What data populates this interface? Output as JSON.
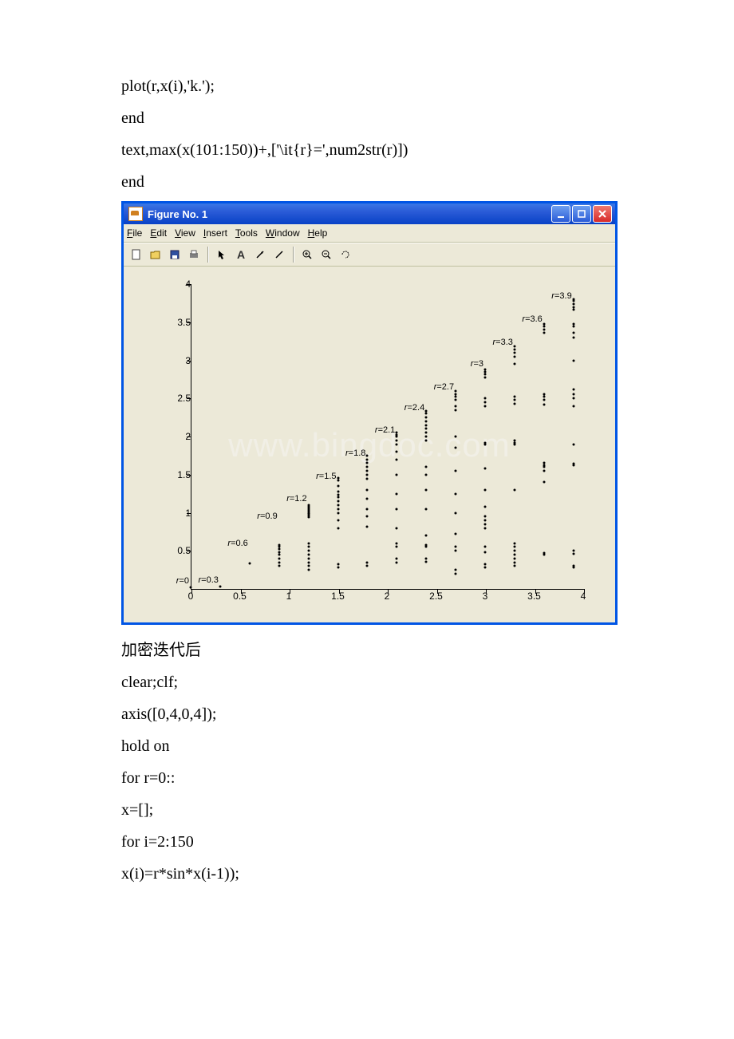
{
  "code_top": [
    " plot(r,x(i),'k.');",
    " end",
    " text,max(x(101:150))+,['\\it{r}=',num2str(r)])",
    "end"
  ],
  "code_bottom": [
    "加密迭代后",
    "clear;clf;",
    "axis([0,4,0,4]);",
    "hold on",
    "for r=0::",
    " x=[];",
    " for i=2:150",
    " x(i)=r*sin*x(i-1));"
  ],
  "window": {
    "title": "Figure No. 1",
    "menus": [
      "File",
      "Edit",
      "View",
      "Insert",
      "Tools",
      "Window",
      "Help"
    ],
    "toolbar_icons": [
      "new",
      "open",
      "save",
      "print",
      "|",
      "pointer",
      "text",
      "arrow",
      "line",
      "|",
      "zoom-in",
      "zoom-out",
      "rotate"
    ]
  },
  "chart": {
    "watermark": "www.bingdoc.com",
    "xlim": [
      0,
      4
    ],
    "ylim": [
      0,
      4
    ],
    "xticks": [
      0,
      0.5,
      1,
      1.5,
      2,
      2.5,
      3,
      3.5,
      4
    ],
    "yticks": [
      0.5,
      1,
      1.5,
      2,
      2.5,
      3,
      3.5,
      4
    ],
    "xtick_labels": [
      "0",
      "0.5",
      "1",
      "1.5",
      "2",
      "2.5",
      "3",
      "3.5",
      "4"
    ],
    "ytick_labels": [
      "0.5",
      "1",
      "1.5",
      "2",
      "2.5",
      "3",
      "3.5",
      "4"
    ],
    "plot_color": "#000000",
    "background_color": "#ece9d8",
    "r_series": [
      {
        "r": 0.0,
        "label": "r=0",
        "label_y": 0.1,
        "pts": [
          0.02
        ]
      },
      {
        "r": 0.3,
        "label": "r=0.3",
        "label_y": 0.12,
        "pts": [
          0.03
        ]
      },
      {
        "r": 0.6,
        "label": "r=0.6",
        "label_y": 0.6,
        "pts": [
          0.33
        ]
      },
      {
        "r": 0.9,
        "label": "r=0.9",
        "label_y": 0.95,
        "pts": [
          0.45,
          0.48,
          0.52,
          0.55,
          0.58,
          0.3,
          0.35,
          0.4
        ]
      },
      {
        "r": 1.2,
        "label": "r=1.2",
        "label_y": 1.18,
        "pts": [
          0.25,
          0.3,
          0.35,
          0.4,
          0.45,
          0.5,
          0.55,
          0.6,
          0.94,
          0.96,
          0.98,
          1.0,
          1.02,
          1.04,
          1.06,
          1.08,
          1.1
        ]
      },
      {
        "r": 1.5,
        "label": "r=1.5",
        "label_y": 1.48,
        "pts": [
          0.28,
          0.32,
          0.8,
          0.9,
          1.0,
          1.05,
          1.1,
          1.15,
          1.2,
          1.24,
          1.28,
          1.35,
          1.42,
          1.46
        ]
      },
      {
        "r": 1.8,
        "label": "r=1.8",
        "label_y": 1.78,
        "pts": [
          0.3,
          0.35,
          0.82,
          0.95,
          1.05,
          1.18,
          1.3,
          1.45,
          1.5,
          1.55,
          1.6,
          1.65,
          1.7,
          1.75
        ]
      },
      {
        "r": 2.1,
        "label": "r=2.1",
        "label_y": 2.08,
        "pts": [
          0.35,
          0.4,
          0.55,
          0.6,
          0.8,
          1.05,
          1.25,
          1.5,
          1.7,
          1.8,
          1.9,
          1.95,
          2.0,
          2.02,
          2.05
        ]
      },
      {
        "r": 2.4,
        "label": "r=2.4",
        "label_y": 2.38,
        "pts": [
          0.36,
          0.4,
          0.55,
          0.58,
          0.7,
          1.05,
          1.3,
          1.5,
          1.6,
          1.95,
          2.0,
          2.05,
          2.1,
          2.15,
          2.2,
          2.25,
          2.3,
          2.33
        ]
      },
      {
        "r": 2.7,
        "label": "r=2.7",
        "label_y": 2.65,
        "pts": [
          0.2,
          0.25,
          0.5,
          0.55,
          0.72,
          1.0,
          1.25,
          1.55,
          1.85,
          2.0,
          2.35,
          2.4,
          2.48,
          2.52,
          2.56,
          2.6
        ]
      },
      {
        "r": 3.0,
        "label": "r=3",
        "label_y": 2.95,
        "pts": [
          0.28,
          0.32,
          0.48,
          0.55,
          0.8,
          0.85,
          0.9,
          0.95,
          1.08,
          1.3,
          1.58,
          1.9,
          1.92,
          2.4,
          2.45,
          2.5,
          2.78,
          2.82,
          2.85,
          2.88
        ]
      },
      {
        "r": 3.3,
        "label": "r=3.3",
        "label_y": 3.24,
        "pts": [
          0.3,
          0.35,
          0.4,
          0.45,
          0.5,
          0.55,
          0.6,
          1.3,
          1.9,
          1.92,
          1.95,
          2.43,
          2.48,
          2.52,
          2.95,
          3.05,
          3.1,
          3.14,
          3.18
        ]
      },
      {
        "r": 3.6,
        "label": "r=3.6",
        "label_y": 3.54,
        "pts": [
          0.45,
          0.47,
          1.4,
          1.55,
          1.6,
          1.62,
          1.65,
          2.42,
          2.48,
          2.52,
          2.56,
          3.36,
          3.4,
          3.44,
          3.48
        ]
      },
      {
        "r": 3.9,
        "label": "r=3.9",
        "label_y": 3.84,
        "pts": [
          0.28,
          0.3,
          0.46,
          0.5,
          1.62,
          1.64,
          1.9,
          2.4,
          2.5,
          2.55,
          2.62,
          3.0,
          3.3,
          3.36,
          3.44,
          3.48,
          3.66,
          3.7,
          3.74,
          3.78,
          3.8
        ]
      }
    ]
  }
}
